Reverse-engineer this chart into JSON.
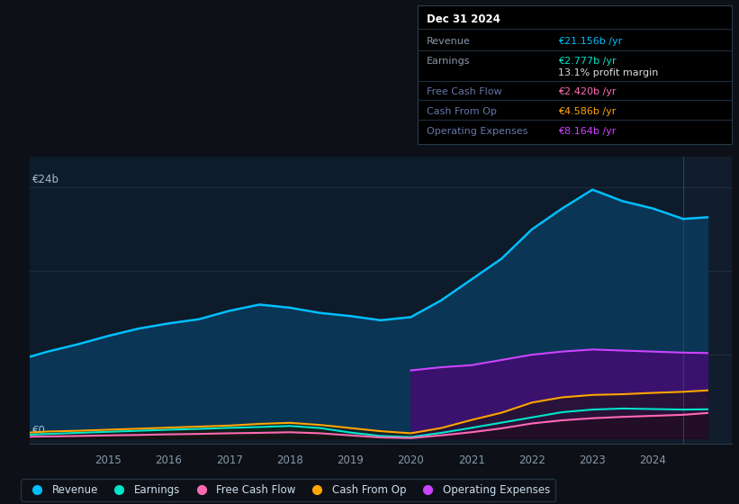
{
  "bg_color": "#0d1117",
  "plot_bg_color": "#0d1b2a",
  "grid_color": "#2a3a4a",
  "ylabel_top": "€24b",
  "ylabel_zero": "€0",
  "years": [
    2013.7,
    2014.0,
    2014.5,
    2015.0,
    2015.5,
    2016.0,
    2016.5,
    2017.0,
    2017.5,
    2018.0,
    2018.5,
    2019.0,
    2019.5,
    2020.0,
    2020.5,
    2021.0,
    2021.5,
    2022.0,
    2022.5,
    2023.0,
    2023.5,
    2024.0,
    2024.5,
    2024.9
  ],
  "revenue": [
    7.8,
    8.3,
    9.0,
    9.8,
    10.5,
    11.0,
    11.4,
    12.2,
    12.8,
    12.5,
    12.0,
    11.7,
    11.3,
    11.6,
    13.2,
    15.2,
    17.2,
    20.0,
    22.0,
    23.8,
    22.7,
    22.0,
    21.0,
    21.156
  ],
  "earnings": [
    0.35,
    0.42,
    0.52,
    0.62,
    0.72,
    0.82,
    0.9,
    1.0,
    1.08,
    1.18,
    0.98,
    0.55,
    0.22,
    0.12,
    0.52,
    1.0,
    1.5,
    2.0,
    2.5,
    2.75,
    2.85,
    2.8,
    2.75,
    2.777
  ],
  "free_cash_flow": [
    0.15,
    0.18,
    0.22,
    0.28,
    0.32,
    0.38,
    0.42,
    0.48,
    0.52,
    0.58,
    0.48,
    0.28,
    0.08,
    0.02,
    0.28,
    0.58,
    0.95,
    1.42,
    1.72,
    1.92,
    2.05,
    2.15,
    2.25,
    2.42
  ],
  "cash_from_op": [
    0.55,
    0.65,
    0.72,
    0.82,
    0.92,
    1.02,
    1.12,
    1.22,
    1.38,
    1.48,
    1.28,
    0.98,
    0.68,
    0.48,
    0.98,
    1.75,
    2.45,
    3.42,
    3.92,
    4.15,
    4.22,
    4.35,
    4.45,
    4.586
  ],
  "op_expenses_years": [
    2020.0,
    2020.5,
    2021.0,
    2021.5,
    2022.0,
    2022.5,
    2023.0,
    2023.5,
    2024.0,
    2024.5,
    2024.9
  ],
  "op_expenses": [
    6.5,
    6.8,
    7.0,
    7.5,
    8.0,
    8.3,
    8.5,
    8.4,
    8.3,
    8.2,
    8.164
  ],
  "revenue_color": "#00bfff",
  "earnings_color": "#00e5cc",
  "free_cash_flow_color": "#ff69b4",
  "cash_from_op_color": "#ffa500",
  "op_expenses_color": "#cc44ff",
  "revenue_fill": "#0a3555",
  "op_expenses_fill": "#3d1070",
  "tooltip_bg": "#000000",
  "tooltip_title": "Dec 31 2024",
  "tooltip_revenue_label": "Revenue",
  "tooltip_revenue_value": "€21.156b /yr",
  "tooltip_earnings_label": "Earnings",
  "tooltip_earnings_value": "€2.777b /yr",
  "tooltip_margin": "13.1% profit margin",
  "tooltip_fcf_label": "Free Cash Flow",
  "tooltip_fcf_value": "€2.420b /yr",
  "tooltip_cfop_label": "Cash From Op",
  "tooltip_cfop_value": "€4.586b /yr",
  "tooltip_opex_label": "Operating Expenses",
  "tooltip_opex_value": "€8.164b /yr",
  "legend_items": [
    "Revenue",
    "Earnings",
    "Free Cash Flow",
    "Cash From Op",
    "Operating Expenses"
  ],
  "legend_colors": [
    "#00bfff",
    "#00e5cc",
    "#ff69b4",
    "#ffa500",
    "#cc44ff"
  ],
  "xmin": 2013.7,
  "xmax": 2025.3,
  "ymin": -0.5,
  "ymax": 27,
  "highlight_start": 2024.5
}
